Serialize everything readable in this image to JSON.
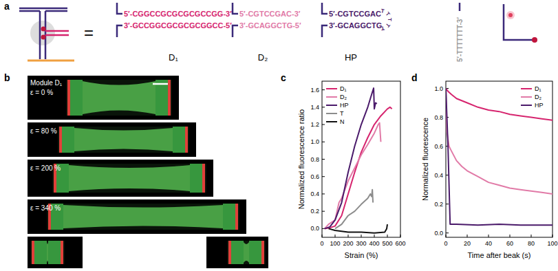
{
  "panel_labels": [
    "a",
    "b",
    "c",
    "d"
  ],
  "panel_a": {
    "equals": "=",
    "modules": [
      {
        "name": "D₁",
        "top": "5′-CGGCCGCGCGCGCCGG-3′",
        "bottom": "3′-GCCGGCGCGCGCGGCC-5′",
        "color": "#d6246e"
      },
      {
        "name": "D₂",
        "top": "5′-CGTCCGAC-3′",
        "bottom": "3′-GCAGGCTG-5′",
        "color": "#e17aa7"
      },
      {
        "name": "HP",
        "top": "5′-CGTCCGAC",
        "bottom": "3′-GCAGGCTG",
        "loop": "TTTTT",
        "color": "#4a1a6a"
      },
      {
        "strand": "5′-TTTTTTT-3′",
        "color": "#9a9a9a"
      }
    ]
  },
  "panel_b": {
    "title": "Module D₁",
    "rows": [
      "ε = 0 %",
      "ε = 80 %",
      "ε = 200 %",
      "ε = 340 %"
    ]
  },
  "chart_data": [
    {
      "type": "line",
      "xlabel": "Strain (%)",
      "ylabel": "Normalized fluorescence ratio",
      "xlim": [
        0,
        600
      ],
      "ylim": [
        -0.1,
        1.7
      ],
      "xticks": [
        0,
        100,
        200,
        300,
        400,
        500,
        600
      ],
      "yticks": [
        {
          "value": 0,
          "label": "0.0"
        },
        {
          "value": 0.2,
          "label": "0.2"
        },
        {
          "value": 0.4,
          "label": "0.4"
        },
        {
          "value": 0.6,
          "label": "0.6"
        },
        {
          "value": 0.8,
          "label": "0.8"
        },
        {
          "value": 1.0,
          "label": "1.0"
        },
        {
          "value": 1.2,
          "label": "1.2"
        },
        {
          "value": 1.4,
          "label": "1.4"
        },
        {
          "value": 1.6,
          "label": "1.6"
        }
      ],
      "legend": "upper left",
      "series": [
        {
          "name": "D₁",
          "color": "#d6246e",
          "x": [
            20,
            60,
            100,
            150,
            200,
            250,
            300,
            350,
            400,
            450,
            500,
            520,
            535
          ],
          "values": [
            0,
            0.01,
            0.03,
            0.15,
            0.4,
            0.65,
            0.88,
            1.05,
            1.2,
            1.3,
            1.38,
            1.4,
            1.38
          ]
        },
        {
          "name": "D₂",
          "color": "#e17aa7",
          "x": [
            20,
            50,
            100,
            130,
            150,
            200,
            250,
            300,
            350,
            400,
            430,
            440,
            450
          ],
          "values": [
            0,
            0.05,
            0.1,
            0.3,
            0.35,
            0.55,
            0.7,
            0.85,
            0.97,
            1.1,
            1.2,
            1.22,
            1.0
          ]
        },
        {
          "name": "HP",
          "color": "#4a1a6a",
          "x": [
            20,
            60,
            100,
            150,
            200,
            250,
            300,
            350,
            380,
            395,
            400,
            410,
            420
          ],
          "values": [
            0,
            0.02,
            0.1,
            0.3,
            0.65,
            0.95,
            1.2,
            1.4,
            1.55,
            1.62,
            1.38,
            1.45,
            1.44
          ]
        },
        {
          "name": "T",
          "color": "#8c8c8c",
          "x": [
            100,
            150,
            200,
            250,
            300,
            350,
            370,
            380,
            385,
            390
          ],
          "values": [
            0,
            0.05,
            0.15,
            0.2,
            0.28,
            0.35,
            0.4,
            0.37,
            0.45,
            0.3
          ]
        },
        {
          "name": "N",
          "color": "#111111",
          "x": [
            50,
            100,
            200,
            300,
            400,
            480,
            495,
            500
          ],
          "values": [
            0,
            -0.02,
            -0.04,
            -0.04,
            -0.05,
            -0.04,
            0,
            0.05
          ]
        }
      ]
    },
    {
      "type": "line",
      "xlabel": "Time after beak (s)",
      "ylabel": "Normalized fluorescence",
      "xlim": [
        0,
        100
      ],
      "ylim": [
        -0.03,
        1.05
      ],
      "xticks": [
        0,
        20,
        40,
        60,
        80,
        100
      ],
      "yticks": [
        {
          "value": 0,
          "label": "0.0"
        },
        {
          "value": 0.2,
          "label": "0.2"
        },
        {
          "value": 0.4,
          "label": "0.4"
        },
        {
          "value": 0.6,
          "label": "0.6"
        },
        {
          "value": 0.8,
          "label": "0.8"
        },
        {
          "value": 1.0,
          "label": "1.0"
        }
      ],
      "legend": "upper right",
      "series": [
        {
          "name": "D₁",
          "color": "#d6246e",
          "x": [
            0,
            2,
            5,
            10,
            20,
            30,
            40,
            50,
            60,
            70,
            80,
            90,
            100
          ],
          "values": [
            1.0,
            0.98,
            0.96,
            0.93,
            0.9,
            0.87,
            0.85,
            0.84,
            0.82,
            0.81,
            0.8,
            0.79,
            0.78
          ]
        },
        {
          "name": "D₂",
          "color": "#e17aa7",
          "x": [
            0,
            1,
            3,
            5,
            10,
            15,
            20,
            30,
            40,
            50,
            60,
            70,
            80,
            90,
            100
          ],
          "values": [
            1.0,
            0.7,
            0.6,
            0.57,
            0.5,
            0.46,
            0.43,
            0.39,
            0.35,
            0.33,
            0.31,
            0.3,
            0.29,
            0.28,
            0.27
          ]
        },
        {
          "name": "HP",
          "color": "#4a1a6a",
          "x": [
            0,
            2,
            4,
            10,
            30,
            50,
            70,
            100
          ],
          "values": [
            1.0,
            0.6,
            0.06,
            0.06,
            0.055,
            0.06,
            0.055,
            0.055
          ]
        }
      ]
    }
  ]
}
